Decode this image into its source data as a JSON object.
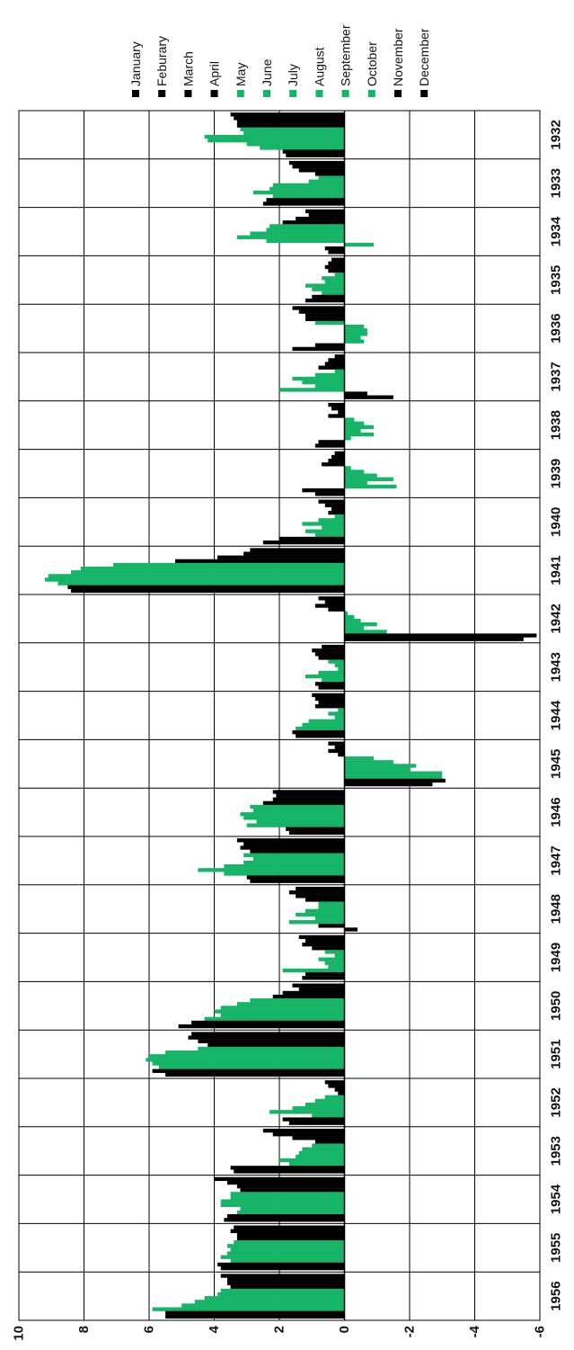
{
  "chart_data": {
    "type": "bar",
    "orientation": "vertical-bars-rotated",
    "title": "",
    "xlabel": "",
    "ylabel": "",
    "ylim": [
      -6,
      10
    ],
    "yticks": [
      10,
      8,
      6,
      4,
      2,
      0,
      -2,
      -4,
      -6
    ],
    "ytick_labels": [
      "10",
      "8",
      "6",
      "4",
      "2",
      "0",
      "-2",
      "-4",
      "-6"
    ],
    "grid": true,
    "legend_position": "right",
    "categories": [
      "1932",
      "1933",
      "1934",
      "1935",
      "1936",
      "1937",
      "1938",
      "1939",
      "1940",
      "1941",
      "1942",
      "1943",
      "1944",
      "1945",
      "1946",
      "1947",
      "1948",
      "1949",
      "1950",
      "1951",
      "1952",
      "1953",
      "1954",
      "1955",
      "1956"
    ],
    "series": [
      {
        "name": "January",
        "color": "#000000",
        "values": [
          3.5,
          1.7,
          1.2,
          0.4,
          1.6,
          0.3,
          0.5,
          0.3,
          0.8,
          2.9,
          0.8,
          0.7,
          1.0,
          0.5,
          2.2,
          3.3,
          1.5,
          1.4,
          1.6,
          4.7,
          0.6,
          2.5,
          4.0,
          3.4,
          3.8
        ]
      },
      {
        "name": "Feburary",
        "color": "#000000",
        "values": [
          3.4,
          1.6,
          1.1,
          0.5,
          1.4,
          0.5,
          0.4,
          0.4,
          0.6,
          3.1,
          0.6,
          1.0,
          0.9,
          0.3,
          2.1,
          3.1,
          1.7,
          1.2,
          1.4,
          4.8,
          0.5,
          2.2,
          3.6,
          3.5,
          3.6
        ]
      },
      {
        "name": "March",
        "color": "#000000",
        "values": [
          3.3,
          1.4,
          1.5,
          0.6,
          1.2,
          0.6,
          0.2,
          0.5,
          0.4,
          3.9,
          0.9,
          0.9,
          0.8,
          0.5,
          2.2,
          3.2,
          1.5,
          1.3,
          1.9,
          4.5,
          0.3,
          1.6,
          3.3,
          3.3,
          3.6
        ]
      },
      {
        "name": "April",
        "color": "#000000",
        "values": [
          3.3,
          0.9,
          1.9,
          0.5,
          1.2,
          0.8,
          0.5,
          0.7,
          0.5,
          5.2,
          0.5,
          0.8,
          0.9,
          0.2,
          2.5,
          2.9,
          1.2,
          1.0,
          2.2,
          4.2,
          0.2,
          0.9,
          3.2,
          3.3,
          3.5
        ]
      },
      {
        "name": "May",
        "color": "#16b466",
        "values": [
          3.2,
          0.8,
          2.3,
          0.3,
          0.9,
          0.3,
          -0.3,
          -0.2,
          0.3,
          7.1,
          -0.1,
          0.5,
          0.2,
          -0.9,
          2.9,
          3.1,
          0.8,
          0.6,
          2.9,
          4.5,
          0.6,
          1.0,
          3.5,
          3.4,
          3.8
        ]
      },
      {
        "name": "June",
        "color": "#16b466",
        "values": [
          3.1,
          1.1,
          2.4,
          0.7,
          -0.6,
          0.9,
          -0.6,
          -0.6,
          0.8,
          8.1,
          -0.3,
          0.3,
          0.5,
          -1.5,
          2.8,
          2.8,
          0.8,
          0.3,
          3.3,
          5.5,
          0.9,
          1.3,
          3.5,
          3.6,
          3.9
        ]
      },
      {
        "name": "July",
        "color": "#16b466",
        "values": [
          4.3,
          2.2,
          2.9,
          0.6,
          -0.7,
          1.6,
          -0.9,
          -1.0,
          1.3,
          8.4,
          -0.5,
          0.2,
          0.3,
          -2.2,
          3.2,
          3.1,
          1.2,
          0.8,
          3.8,
          6.0,
          1.2,
          1.4,
          3.8,
          3.5,
          4.3
        ]
      },
      {
        "name": "August",
        "color": "#16b466",
        "values": [
          4.2,
          2.3,
          3.3,
          1.2,
          -0.7,
          1.3,
          -0.5,
          -1.5,
          0.7,
          9.1,
          -1.0,
          0.8,
          1.1,
          -2.0,
          3.1,
          3.7,
          1.5,
          0.6,
          4.0,
          6.1,
          1.6,
          1.5,
          3.8,
          3.6,
          4.6
        ]
      },
      {
        "name": "September",
        "color": "#16b466",
        "values": [
          3.0,
          2.8,
          2.4,
          1.0,
          -0.5,
          0.9,
          -0.9,
          -0.7,
          1.2,
          9.2,
          -0.6,
          1.2,
          1.3,
          -3.0,
          2.7,
          4.5,
          0.9,
          0.5,
          3.8,
          5.9,
          2.3,
          2.0,
          3.2,
          3.8,
          5.0
        ]
      },
      {
        "name": "October",
        "color": "#16b466",
        "values": [
          2.6,
          2.2,
          -0.9,
          0.7,
          -0.6,
          2.0,
          -0.2,
          -1.6,
          0.9,
          8.8,
          -1.3,
          0.7,
          1.5,
          -3.0,
          3.0,
          3.7,
          1.7,
          1.9,
          4.3,
          5.7,
          1.0,
          1.7,
          3.3,
          3.5,
          5.9
        ]
      },
      {
        "name": "November",
        "color": "#000000",
        "values": [
          1.9,
          2.4,
          0.6,
          1.0,
          0.9,
          -0.7,
          0.8,
          1.3,
          2.0,
          8.5,
          -5.9,
          0.9,
          1.6,
          -3.1,
          1.8,
          3.0,
          0.8,
          1.2,
          4.7,
          5.9,
          1.9,
          3.5,
          3.6,
          3.9,
          5.5
        ]
      },
      {
        "name": "December",
        "color": "#000000",
        "values": [
          1.8,
          2.5,
          0.5,
          1.2,
          1.6,
          -1.5,
          0.9,
          0.9,
          2.5,
          8.4,
          -5.5,
          0.8,
          1.5,
          -2.7,
          1.7,
          2.9,
          -0.4,
          1.3,
          5.1,
          5.5,
          1.7,
          3.4,
          3.7,
          3.8,
          5.5
        ]
      }
    ]
  }
}
